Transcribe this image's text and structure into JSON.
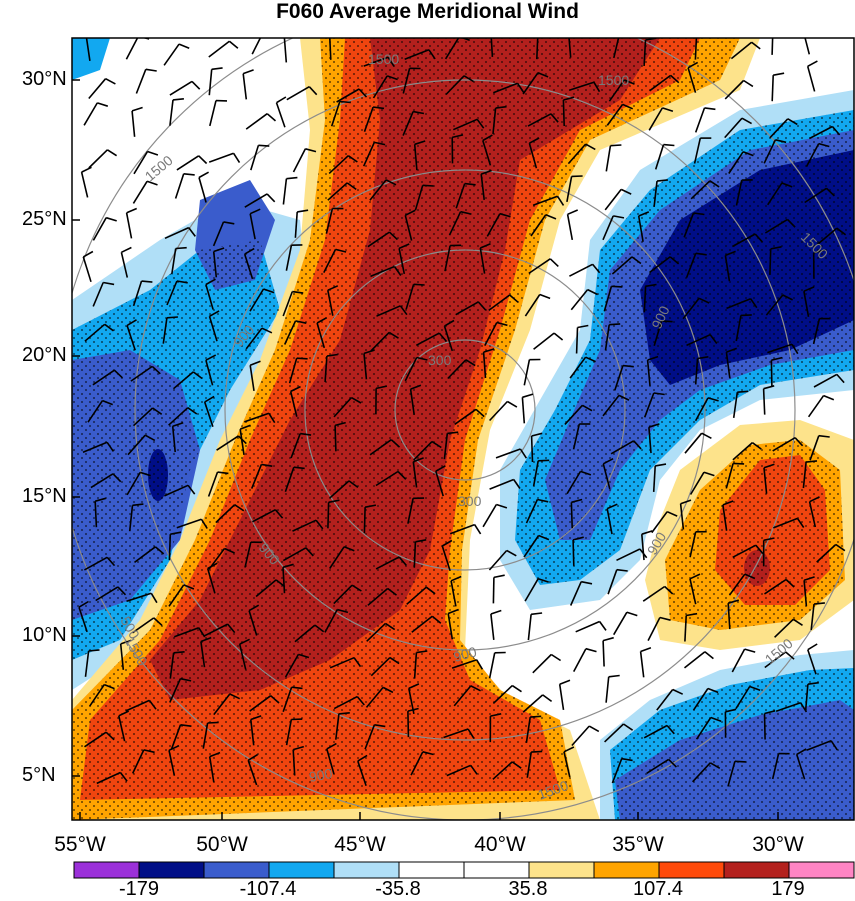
{
  "title": "F060 Average Meridional Wind",
  "lat_labels": [
    "30°N",
    "25°N",
    "20°N",
    "15°N",
    "10°N",
    "5°N"
  ],
  "lon_labels": [
    "55°W",
    "50°W",
    "45°W",
    "40°W",
    "35°W",
    "30°W"
  ],
  "contour_labels": [
    "1500",
    "1500",
    "1500",
    "1500",
    "1500",
    "1500",
    "1500",
    "900",
    "900",
    "900",
    "900",
    "900",
    "900",
    "300",
    "300",
    "500"
  ],
  "colorbar": {
    "colors": [
      "#9b30d9",
      "#000e87",
      "#3a5ccc",
      "#12a8f0",
      "#b0dff7",
      "#ffffff",
      "#ffffff",
      "#fde38b",
      "#ffa400",
      "#ff4a0a",
      "#b3201d",
      "#ff85c4"
    ],
    "labels": [
      "-179",
      "-107.4",
      "-35.8",
      "35.8",
      "107.4",
      "179"
    ]
  },
  "colors": {
    "dark_red": "#b3201d",
    "red": "#f0450f",
    "orange": "#ffa400",
    "yellow": "#fde38b",
    "light_blue": "#b0dff7",
    "blue": "#12a8f0",
    "mid_blue": "#3a5ccc",
    "navy": "#000e87"
  }
}
